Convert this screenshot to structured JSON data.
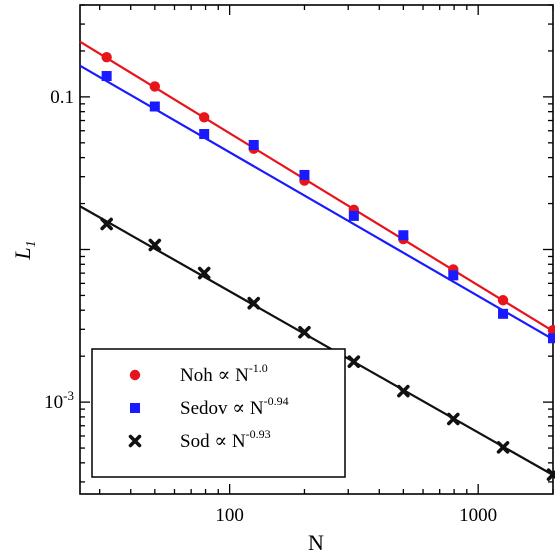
{
  "chart_data": {
    "type": "scatter",
    "title": "",
    "xlabel": "N",
    "ylabel": "L",
    "ylabel_subscript": "1",
    "xscale": "log",
    "yscale": "log",
    "xlim": [
      25,
      2000
    ],
    "ylim": [
      0.00025,
      0.4
    ],
    "x_tick_labels": [
      {
        "value": 100,
        "label": "100"
      },
      {
        "value": 1000,
        "label": "1000"
      }
    ],
    "y_tick_labels": [
      {
        "value": 0.1,
        "label": "0.1"
      },
      {
        "value": 0.001,
        "label": "10",
        "sup": "-3"
      }
    ],
    "legend": {
      "position": "bottom-left"
    },
    "series": [
      {
        "name": "Noh",
        "legend_prefix": "Noh ∝ N",
        "legend_exponent": "-1.0",
        "marker": "circle",
        "color": "#e8141c",
        "x": [
          32,
          50,
          79,
          125,
          200,
          316,
          500,
          794,
          1259,
          2000
        ],
        "y": [
          0.182,
          0.117,
          0.0735,
          0.0458,
          0.0283,
          0.0182,
          0.0117,
          0.0074,
          0.00465,
          0.00296
        ],
        "fit": {
          "x": [
            25,
            2000
          ],
          "y": [
            0.23,
            0.00292
          ]
        }
      },
      {
        "name": "Sedov",
        "legend_prefix": "Sedov ∝ N",
        "legend_exponent": "-0.94",
        "marker": "square",
        "color": "#1a1aff",
        "x": [
          32,
          50,
          79,
          125,
          200,
          316,
          500,
          794,
          1259,
          2000
        ],
        "y": [
          0.137,
          0.0865,
          0.0571,
          0.0484,
          0.0308,
          0.0166,
          0.0124,
          0.00677,
          0.00379,
          0.00262
        ],
        "fit": {
          "x": [
            25,
            2000
          ],
          "y": [
            0.16,
            0.00258
          ]
        }
      },
      {
        "name": "Sod",
        "legend_prefix": "Sod ∝ N",
        "legend_exponent": "-0.93",
        "marker": "x",
        "color": "#111111",
        "x": [
          32,
          50,
          79,
          125,
          200,
          316,
          500,
          794,
          1259,
          2000
        ],
        "y": [
          0.0147,
          0.0107,
          0.00701,
          0.00445,
          0.00287,
          0.00184,
          0.00118,
          0.000775,
          0.000505,
          0.000335
        ],
        "fit": {
          "x": [
            25,
            2000
          ],
          "y": [
            0.0192,
            0.000333
          ]
        }
      }
    ]
  }
}
